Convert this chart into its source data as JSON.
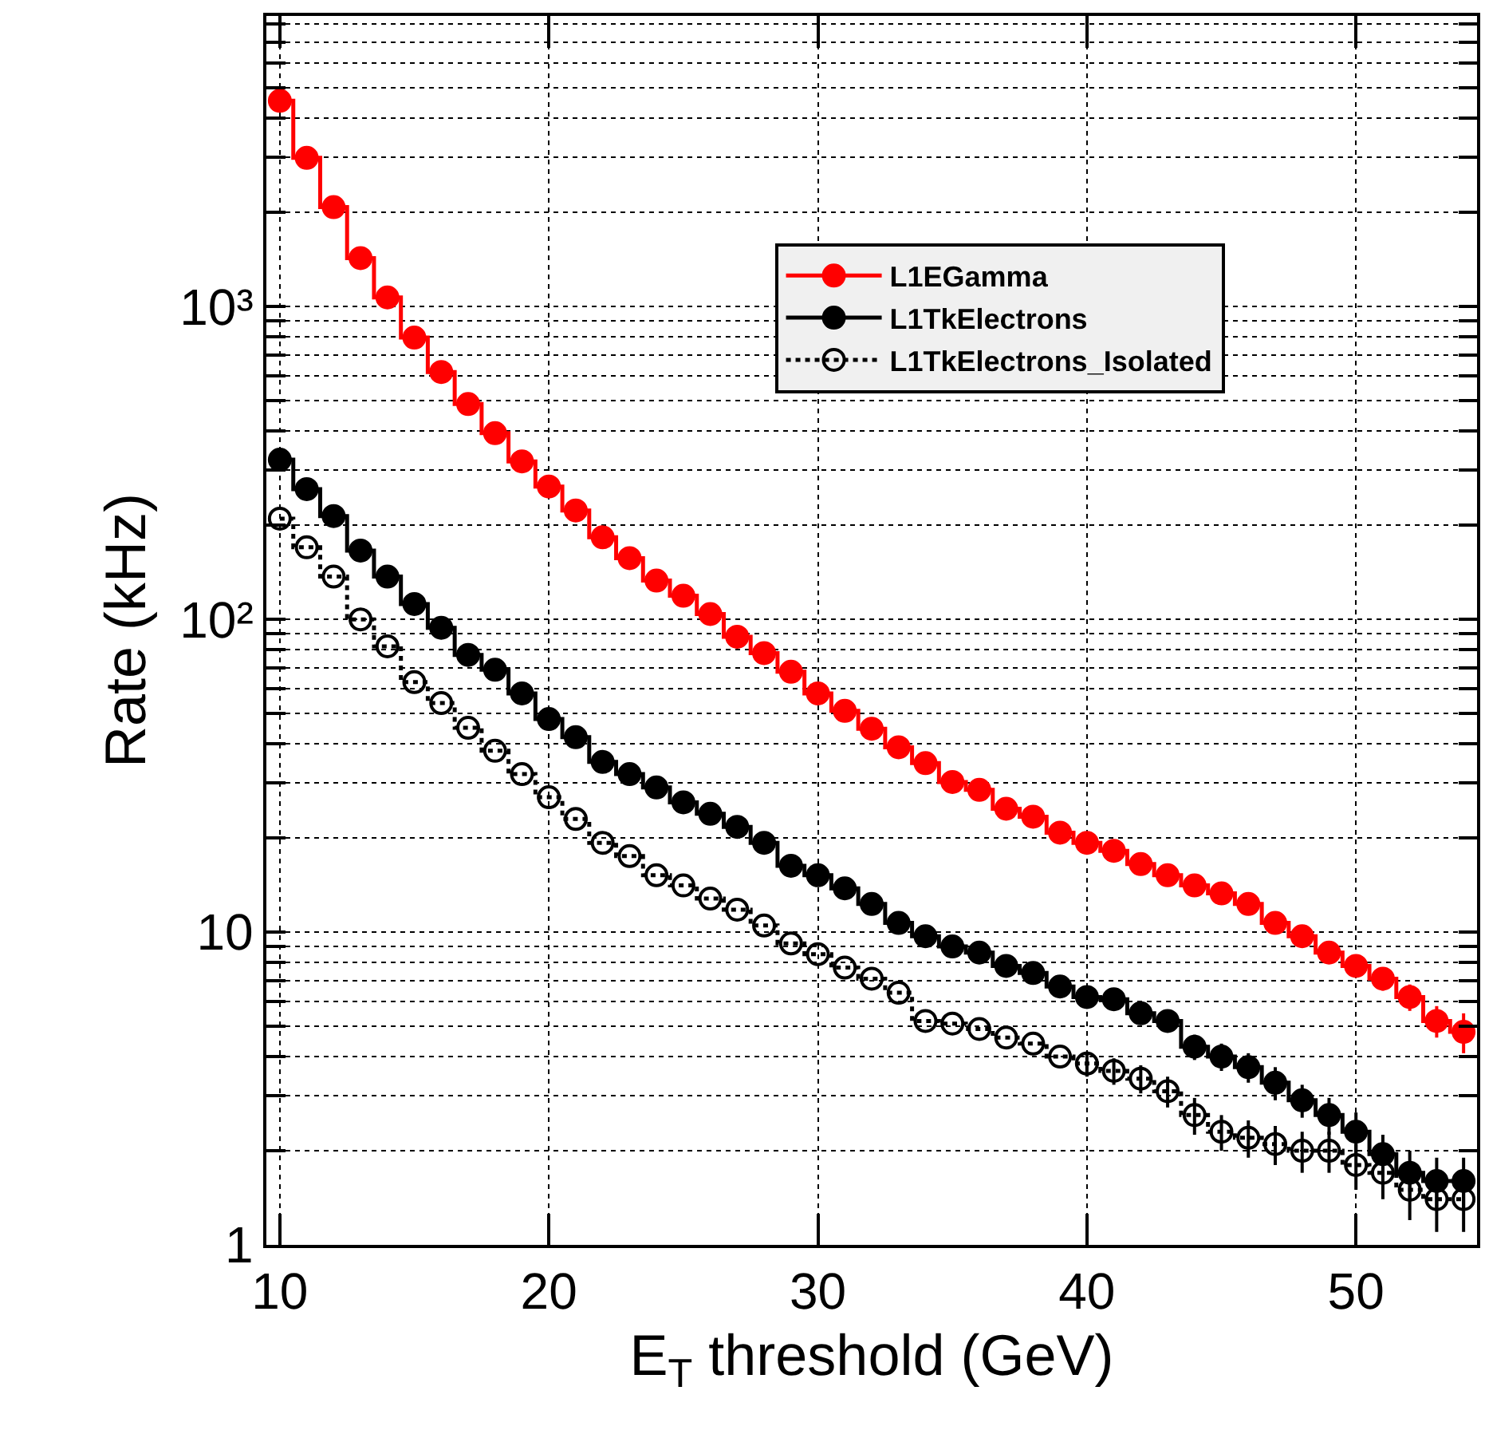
{
  "chart_data": {
    "type": "step",
    "xlabel": "E$_{T}$ threshold (GeV)",
    "ylabel": "Rate (kHz)",
    "x": [
      10,
      11,
      12,
      13,
      14,
      15,
      16,
      17,
      18,
      19,
      20,
      21,
      22,
      23,
      24,
      25,
      26,
      27,
      28,
      29,
      30,
      31,
      32,
      33,
      34,
      35,
      36,
      37,
      38,
      39,
      40,
      41,
      42,
      43,
      44,
      45,
      46,
      47,
      48,
      49,
      50,
      51,
      52,
      53,
      54
    ],
    "series": [
      {
        "name": "L1EGamma",
        "color": "#ff0000",
        "line_style": "solid",
        "marker": "circle",
        "values": [
          4550,
          2990,
          2080,
          1430,
          1070,
          796,
          618,
          488,
          394,
          320,
          266,
          223,
          183,
          157,
          133,
          119,
          104,
          88,
          78,
          68,
          58,
          51,
          44.7,
          39,
          34.7,
          30.2,
          28.5,
          24.8,
          23.4,
          20.8,
          19.3,
          18.2,
          16.5,
          15.2,
          14.1,
          13.3,
          12.3,
          10.7,
          9.7,
          8.6,
          7.8,
          7.1,
          6.2,
          5.2,
          4.8
        ],
        "errors": [
          null,
          null,
          null,
          null,
          null,
          null,
          null,
          null,
          null,
          null,
          null,
          null,
          null,
          null,
          null,
          null,
          null,
          null,
          null,
          null,
          null,
          null,
          null,
          null,
          null,
          null,
          null,
          null,
          null,
          null,
          null,
          null,
          null,
          null,
          null,
          null,
          null,
          null,
          0.6,
          0.6,
          0.6,
          0.6,
          0.6,
          0.6,
          0.7
        ]
      },
      {
        "name": "L1TkElectrons",
        "color": "#000000",
        "line_style": "solid",
        "marker": "circle",
        "values": [
          324,
          261,
          214,
          166,
          137,
          112,
          94,
          77,
          69,
          58,
          48,
          42,
          35,
          32,
          29,
          26,
          23.9,
          21.7,
          19.3,
          16.3,
          15.2,
          13.8,
          12.3,
          10.7,
          9.7,
          9,
          8.6,
          7.8,
          7.4,
          6.7,
          6.2,
          6.1,
          5.5,
          5.2,
          4.3,
          4,
          3.7,
          3.3,
          2.9,
          2.6,
          2.3,
          1.95,
          1.7,
          1.6,
          1.6
        ],
        "errors": [
          null,
          null,
          null,
          null,
          null,
          null,
          null,
          null,
          null,
          null,
          null,
          null,
          null,
          null,
          null,
          null,
          null,
          null,
          null,
          null,
          null,
          null,
          null,
          null,
          null,
          null,
          null,
          null,
          null,
          null,
          0.4,
          0.4,
          0.4,
          0.4,
          0.4,
          0.4,
          0.4,
          0.4,
          0.35,
          0.35,
          0.35,
          0.3,
          0.3,
          0.3,
          0.3
        ]
      },
      {
        "name": "L1TkElectrons_Isolated",
        "color": "#000000",
        "line_style": "dotted",
        "marker": "circle-open",
        "values": [
          210,
          170,
          137,
          100,
          82,
          63,
          54,
          45,
          38,
          32,
          27,
          23,
          19.3,
          17.5,
          15.2,
          14.1,
          12.8,
          11.8,
          10.5,
          9.2,
          8.5,
          7.7,
          7.1,
          6.4,
          5.2,
          5.1,
          4.9,
          4.6,
          4.4,
          4,
          3.8,
          3.6,
          3.4,
          3.1,
          2.6,
          2.3,
          2.2,
          2.1,
          2,
          2,
          1.8,
          1.7,
          1.5,
          1.4,
          1.4
        ],
        "errors": [
          null,
          null,
          null,
          null,
          null,
          null,
          null,
          null,
          null,
          null,
          null,
          null,
          null,
          null,
          null,
          null,
          null,
          null,
          null,
          null,
          null,
          null,
          null,
          null,
          null,
          null,
          null,
          null,
          null,
          null,
          0.35,
          0.35,
          0.35,
          0.35,
          0.35,
          0.3,
          0.3,
          0.3,
          0.3,
          0.3,
          0.3,
          0.3,
          0.3,
          0.3,
          0.3
        ]
      }
    ],
    "xlim": [
      9.5,
      54.5
    ],
    "xticks": [
      10,
      20,
      30,
      40,
      50
    ],
    "ylim": [
      1,
      8500
    ],
    "log": true,
    "yticks": [
      1,
      {
        "value": 2,
        "label": null
      },
      {
        "value": 3,
        "label": null
      },
      {
        "value": 4,
        "label": null
      },
      {
        "value": 5,
        "label": null
      },
      {
        "value": 6,
        "label": null
      },
      {
        "value": 7,
        "label": null
      },
      {
        "value": 8,
        "label": null
      },
      {
        "value": 9,
        "label": null
      },
      10,
      {
        "value": 20,
        "label": null
      },
      {
        "value": 30,
        "label": null
      },
      {
        "value": 40,
        "label": null
      },
      {
        "value": 50,
        "label": null
      },
      {
        "value": 60,
        "label": null
      },
      {
        "value": 70,
        "label": null
      },
      {
        "value": 80,
        "label": null
      },
      {
        "value": 90,
        "label": null
      },
      {
        "value": 100,
        "label": "10²"
      },
      {
        "value": 200,
        "label": null
      },
      {
        "value": 300,
        "label": null
      },
      {
        "value": 400,
        "label": null
      },
      {
        "value": 500,
        "label": null
      },
      {
        "value": 600,
        "label": null
      },
      {
        "value": 700,
        "label": null
      },
      {
        "value": 800,
        "label": null
      },
      {
        "value": 900,
        "label": null
      },
      {
        "value": 1000,
        "label": "10³"
      },
      {
        "value": 2000,
        "label": null
      },
      {
        "value": 3000,
        "label": null
      },
      {
        "value": 4000,
        "label": null
      },
      {
        "value": 5000,
        "label": null
      },
      {
        "value": 6000,
        "label": null
      },
      {
        "value": 7000,
        "label": null
      },
      {
        "value": 8000,
        "label": null
      }
    ],
    "grid": true,
    "legend": "top right"
  }
}
